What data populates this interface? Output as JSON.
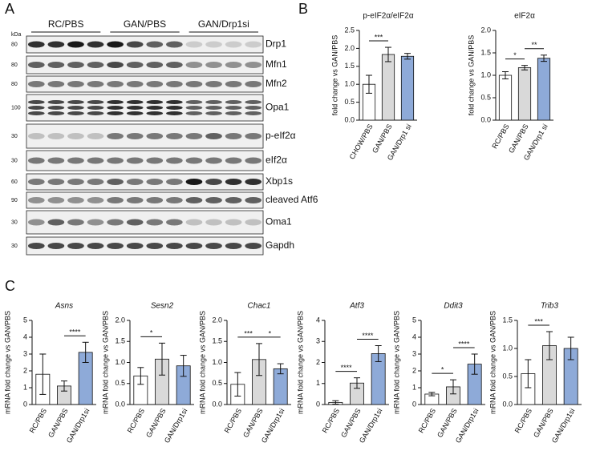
{
  "panel_letters": [
    "A",
    "B",
    "C"
  ],
  "panel_a": {
    "kda_unit": "kDa",
    "groups": [
      "RC/PBS",
      "GAN/PBS",
      "GAN/Drp1si"
    ],
    "rows": [
      {
        "protein": "Drp1",
        "kda": "80"
      },
      {
        "protein": "Mfn1",
        "kda": "80"
      },
      {
        "protein": "Mfn2",
        "kda": "80"
      },
      {
        "protein": "Opa1",
        "kda": "100"
      },
      {
        "protein": "p-eIf2α",
        "kda": "30"
      },
      {
        "protein": "eIf2α",
        "kda": "30"
      },
      {
        "protein": "Xbp1s",
        "kda": "60"
      },
      {
        "protein": "cleaved Atf6",
        "kda": "90"
      },
      {
        "protein": "Oma1",
        "kda": "30"
      },
      {
        "protein": "Gapdh",
        "kda": "30"
      }
    ]
  },
  "chart_data": [
    {
      "type": "bar",
      "title": "p-eIF2α/eIF2α",
      "y_label": "fold change vs GAN/PBS",
      "categories": [
        "CHOW/PBS",
        "GAN/PBS",
        "GAN/Drp1 si"
      ],
      "values": [
        1.0,
        1.83,
        1.78
      ],
      "errors": [
        0.25,
        0.2,
        0.08
      ],
      "colors": [
        "#ffffff",
        "#d9d9d9",
        "#8eaad8"
      ],
      "ylim": [
        0,
        2.5
      ],
      "yticks": [
        {
          "value": 0,
          "label": "0.0"
        },
        0.5,
        {
          "value": 1,
          "label": "1.0"
        },
        1.5,
        {
          "value": 2,
          "label": "2.0"
        },
        2.5
      ],
      "significance": [
        {
          "label": "***",
          "between": [
            0,
            1
          ]
        }
      ]
    },
    {
      "type": "bar",
      "title": "eIF2α",
      "y_label": "fold change vs GAN/PBS",
      "categories": [
        "RC/PBS",
        "GAN/PBS",
        "GAN/Drp1 si"
      ],
      "values": [
        1.0,
        1.17,
        1.38
      ],
      "errors": [
        0.08,
        0.05,
        0.07
      ],
      "colors": [
        "#ffffff",
        "#d9d9d9",
        "#8eaad8"
      ],
      "ylim": [
        0,
        2
      ],
      "yticks": [
        {
          "value": 0,
          "label": "0.0"
        },
        0.5,
        {
          "value": 1,
          "label": "1.0"
        },
        1.5,
        {
          "value": 2,
          "label": "2.0"
        }
      ],
      "significance": [
        {
          "label": "*",
          "between": [
            0,
            1
          ]
        },
        {
          "label": "**",
          "between": [
            1,
            2
          ]
        }
      ]
    },
    {
      "type": "bar",
      "title": "Asns",
      "y_label": "mRNA fold change vs GAN/PBS",
      "categories": [
        "RC/PBS",
        "GAN/PBS",
        "GAN/Drp1si"
      ],
      "values": [
        1.8,
        1.1,
        3.1
      ],
      "errors": [
        1.2,
        0.3,
        0.6
      ],
      "colors": [
        "#ffffff",
        "#d9d9d9",
        "#8eaad8"
      ],
      "ylim": [
        0,
        5
      ],
      "yticks": [
        0,
        1,
        2,
        3,
        4,
        5
      ],
      "significance": [
        {
          "label": "****",
          "between": [
            1,
            2
          ]
        }
      ]
    },
    {
      "type": "bar",
      "title": "Sesn2",
      "y_label": "mRNA fold change vs GAN/PBS",
      "categories": [
        "RC/PBS",
        "GAN/PBS",
        "GAN/Drp1si"
      ],
      "values": [
        0.68,
        1.08,
        0.92
      ],
      "errors": [
        0.2,
        0.38,
        0.25
      ],
      "colors": [
        "#ffffff",
        "#d9d9d9",
        "#8eaad8"
      ],
      "ylim": [
        0,
        2
      ],
      "yticks": [
        {
          "value": 0,
          "label": "0.0"
        },
        0.5,
        {
          "value": 1,
          "label": "1.0"
        },
        1.5,
        {
          "value": 2,
          "label": "2.0"
        }
      ],
      "significance": [
        {
          "label": "*",
          "between": [
            0,
            1
          ]
        }
      ]
    },
    {
      "type": "bar",
      "title": "Chac1",
      "y_label": "mRNA fold change vs GAN/PBS",
      "categories": [
        "RC/PBS",
        "GAN/PBS",
        "GAN/Drp1si"
      ],
      "values": [
        0.48,
        1.07,
        0.85
      ],
      "errors": [
        0.28,
        0.38,
        0.12
      ],
      "colors": [
        "#ffffff",
        "#d9d9d9",
        "#8eaad8"
      ],
      "ylim": [
        0,
        2
      ],
      "yticks": [
        {
          "value": 0,
          "label": "0.0"
        },
        0.5,
        {
          "value": 1,
          "label": "1.0"
        },
        1.5,
        {
          "value": 2,
          "label": "2.0"
        }
      ],
      "significance": [
        {
          "label": "***",
          "between": [
            0,
            1
          ]
        },
        {
          "label": "*",
          "between": [
            1,
            2
          ]
        }
      ]
    },
    {
      "type": "bar",
      "title": "Atf3",
      "y_label": "mRNA fold change vs GAN/PBS",
      "categories": [
        "RC/PBS",
        "GAN/PBS",
        "GAN/Drp1si"
      ],
      "values": [
        0.1,
        1.02,
        2.42
      ],
      "errors": [
        0.08,
        0.25,
        0.38
      ],
      "colors": [
        "#ffffff",
        "#d9d9d9",
        "#8eaad8"
      ],
      "ylim": [
        0,
        4
      ],
      "yticks": [
        0,
        1,
        2,
        3,
        4
      ],
      "significance": [
        {
          "label": "****",
          "between": [
            0,
            1
          ]
        },
        {
          "label": "****",
          "between": [
            1,
            2
          ]
        }
      ]
    },
    {
      "type": "bar",
      "title": "Ddit3",
      "y_label": "mRNA fold change vs GAN/PBS",
      "categories": [
        "RC/PBS",
        "GAN/PBS",
        "GAN/Drp1si"
      ],
      "values": [
        0.62,
        1.05,
        2.4
      ],
      "errors": [
        0.1,
        0.42,
        0.6
      ],
      "colors": [
        "#ffffff",
        "#d9d9d9",
        "#8eaad8"
      ],
      "ylim": [
        0,
        5
      ],
      "yticks": [
        0,
        1,
        2,
        3,
        4,
        5
      ],
      "significance": [
        {
          "label": "*",
          "between": [
            0,
            1
          ]
        },
        {
          "label": "****",
          "between": [
            1,
            2
          ]
        }
      ]
    },
    {
      "type": "bar",
      "title": "Trib3",
      "y_label": "mRNA fold change vs GAN/PBS",
      "categories": [
        "RC/PBS",
        "GAN/PBS",
        "GAN/Drp1si"
      ],
      "values": [
        0.55,
        1.05,
        1.0
      ],
      "errors": [
        0.25,
        0.25,
        0.2
      ],
      "colors": [
        "#ffffff",
        "#d9d9d9",
        "#8eaad8"
      ],
      "ylim": [
        0,
        1.5
      ],
      "yticks": [
        {
          "value": 0,
          "label": "0.0"
        },
        0.5,
        {
          "value": 1,
          "label": "1.0"
        },
        1.5
      ],
      "significance": [
        {
          "label": "***",
          "between": [
            0,
            1
          ]
        }
      ]
    }
  ]
}
